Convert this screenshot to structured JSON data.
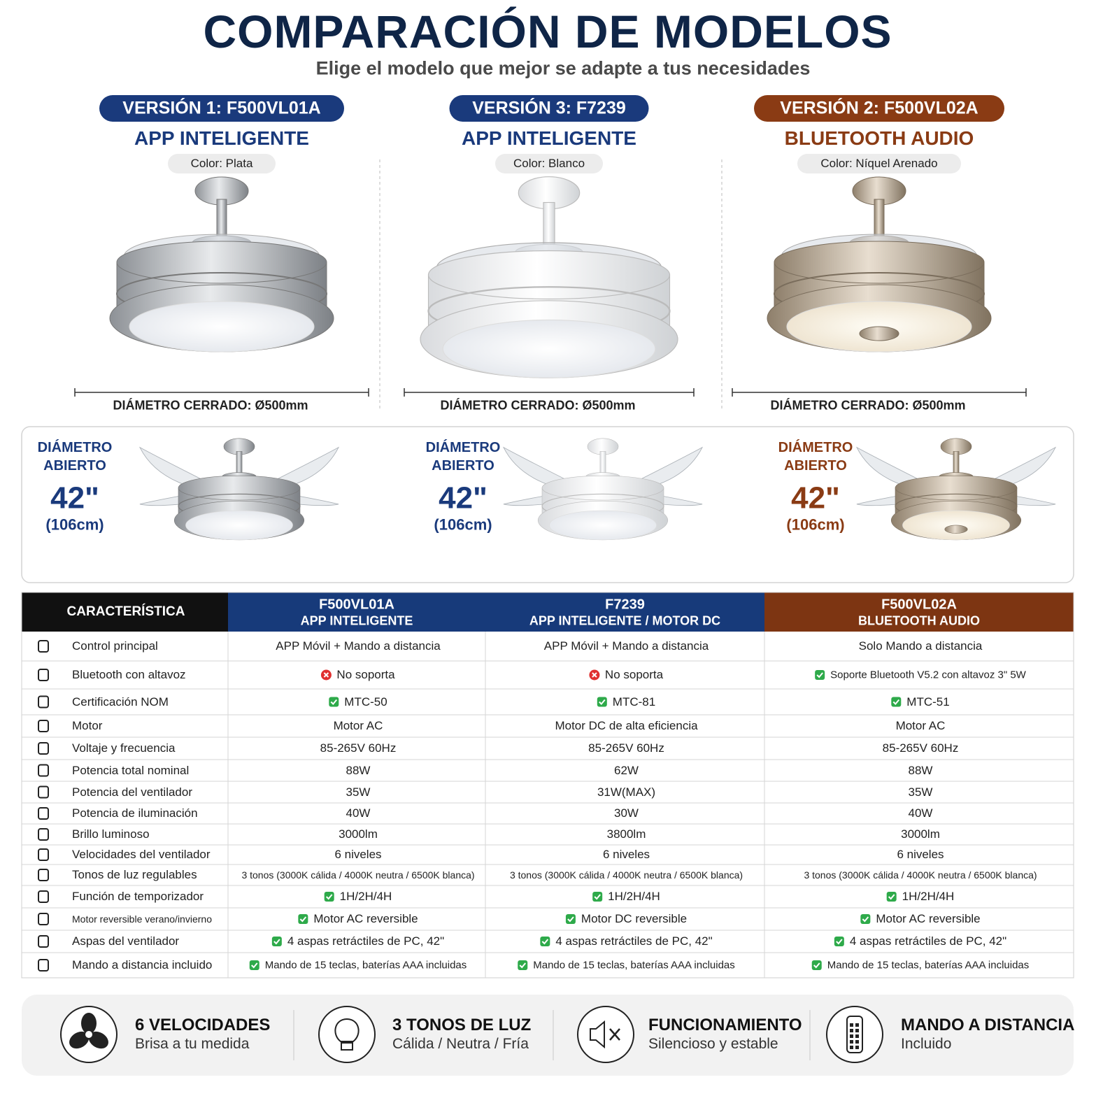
{
  "header": {
    "title": "COMPARACIÓN DE MODELOS",
    "subtitle": "Elige el modelo que mejor se adapte a tus necesidades"
  },
  "models": [
    {
      "version": "VERSIÓN 1: F500VL01A",
      "feature": "APP INTELIGENTE",
      "color": "Color: Plata",
      "accent": "#1a3a7c",
      "closed_diameter": "DIÁMETRO CERRADO: Ø500mm",
      "open_label": "DIÁMETRO ABIERTO",
      "open_size": "42\"",
      "open_cm": "(106cm)"
    },
    {
      "version": "VERSIÓN 3: F7239",
      "feature": "APP INTELIGENTE",
      "color": "Color: Blanco",
      "accent": "#1a3a7c",
      "closed_diameter": "DIÁMETRO CERRADO: Ø500mm",
      "open_label": "DIÁMETRO ABIERTO",
      "open_size": "42\"",
      "open_cm": "(106cm)"
    },
    {
      "version": "VERSIÓN 2: F500VL02A",
      "feature": "BLUETOOTH AUDIO",
      "color": "Color: Níquel Arenado",
      "accent": "#8a3b14",
      "closed_diameter": "DIÁMETRO CERRADO: Ø500mm",
      "open_label": "DIÁMETRO ABIERTO",
      "open_size": "42\"",
      "open_cm": "(106cm)"
    }
  ],
  "table": {
    "label_header": "CARACTERÍSTICA",
    "columns": [
      {
        "name": "F500VL01A",
        "feature": "APP INTELIGENTE",
        "color": "#173a7a"
      },
      {
        "name": "F7239",
        "feature": "APP INTELIGENTE / MOTOR DC",
        "color": "#173a7a"
      },
      {
        "name": "F500VL02A",
        "feature": "BLUETOOTH AUDIO",
        "color": "#7d3512"
      }
    ],
    "rows": [
      {
        "label": "Control principal",
        "values": [
          "APP Móvil + Mando a distancia",
          "APP Móvil + Mando a distancia",
          "Solo Mando a distancia"
        ],
        "marks": [
          null,
          null,
          null
        ]
      },
      {
        "label": "Bluetooth con altavoz",
        "values": [
          "No soporta",
          "No soporta",
          "Soporte Bluetooth V5.2 con altavoz 3\" 5W"
        ],
        "marks": [
          "cross",
          "cross",
          "check"
        ]
      },
      {
        "label": "Certificación NOM",
        "values": [
          "MTC-50",
          "MTC-81",
          "MTC-51"
        ],
        "marks": [
          "check",
          "check",
          "check"
        ]
      },
      {
        "label": "Motor",
        "values": [
          "Motor AC",
          "Motor DC de alta eficiencia",
          "Motor AC"
        ],
        "marks": [
          null,
          null,
          null
        ]
      },
      {
        "label": "Voltaje y frecuencia",
        "values": [
          "85-265V 60Hz",
          "85-265V 60Hz",
          "85-265V 60Hz"
        ],
        "marks": [
          null,
          null,
          null
        ]
      },
      {
        "label": "Potencia total nominal",
        "values": [
          "88W",
          "62W",
          "88W"
        ],
        "marks": [
          null,
          null,
          null
        ]
      },
      {
        "label": "Potencia del ventilador",
        "values": [
          "35W",
          "31W(MAX)",
          "35W"
        ],
        "marks": [
          null,
          null,
          null
        ]
      },
      {
        "label": "Potencia de iluminación",
        "values": [
          "40W",
          "30W",
          "40W"
        ],
        "marks": [
          null,
          null,
          null
        ]
      },
      {
        "label": "Brillo luminoso",
        "values": [
          "3000lm",
          "3800lm",
          "3000lm"
        ],
        "marks": [
          null,
          null,
          null
        ]
      },
      {
        "label": "Velocidades del ventilador",
        "values": [
          "6 niveles",
          "6 niveles",
          "6 niveles"
        ],
        "marks": [
          null,
          null,
          null
        ]
      },
      {
        "label": "Tonos de luz regulables",
        "values": [
          "3 tonos (3000K cálida / 4000K neutra / 6500K blanca)",
          "3 tonos (3000K cálida / 4000K neutra / 6500K blanca)",
          "3 tonos (3000K cálida / 4000K neutra / 6500K blanca)"
        ],
        "marks": [
          null,
          null,
          null
        ]
      },
      {
        "label": "Función de temporizador",
        "values": [
          "1H/2H/4H",
          "1H/2H/4H",
          "1H/2H/4H"
        ],
        "marks": [
          "check",
          "check",
          "check"
        ]
      },
      {
        "label": "Motor reversible verano/invierno",
        "values": [
          "Motor AC reversible",
          "Motor DC reversible",
          "Motor AC reversible"
        ],
        "marks": [
          "check",
          "check",
          "check"
        ]
      },
      {
        "label": "Aspas del ventilador",
        "values": [
          "4 aspas retráctiles de PC, 42\"",
          "4 aspas retráctiles de PC, 42\"",
          "4 aspas retráctiles de PC, 42\""
        ],
        "marks": [
          "check",
          "check",
          "check"
        ]
      },
      {
        "label": "Mando a distancia incluido",
        "values": [
          "Mando de 15 teclas, baterías AAA incluidas",
          "Mando de 15 teclas, baterías AAA incluidas",
          "Mando de 15 teclas, baterías AAA incluidas"
        ],
        "marks": [
          "check",
          "check",
          "check"
        ]
      }
    ]
  },
  "features": [
    {
      "title": "6 VELOCIDADES",
      "subtitle": "Brisa a tu medida"
    },
    {
      "title": "3 TONOS DE LUZ",
      "subtitle": "Cálida / Neutra / Fría"
    },
    {
      "title": "FUNCIONAMIENTO",
      "subtitle": "Silencioso y estable"
    },
    {
      "title": "MANDO A DISTANCIA",
      "subtitle": "Incluido"
    }
  ]
}
